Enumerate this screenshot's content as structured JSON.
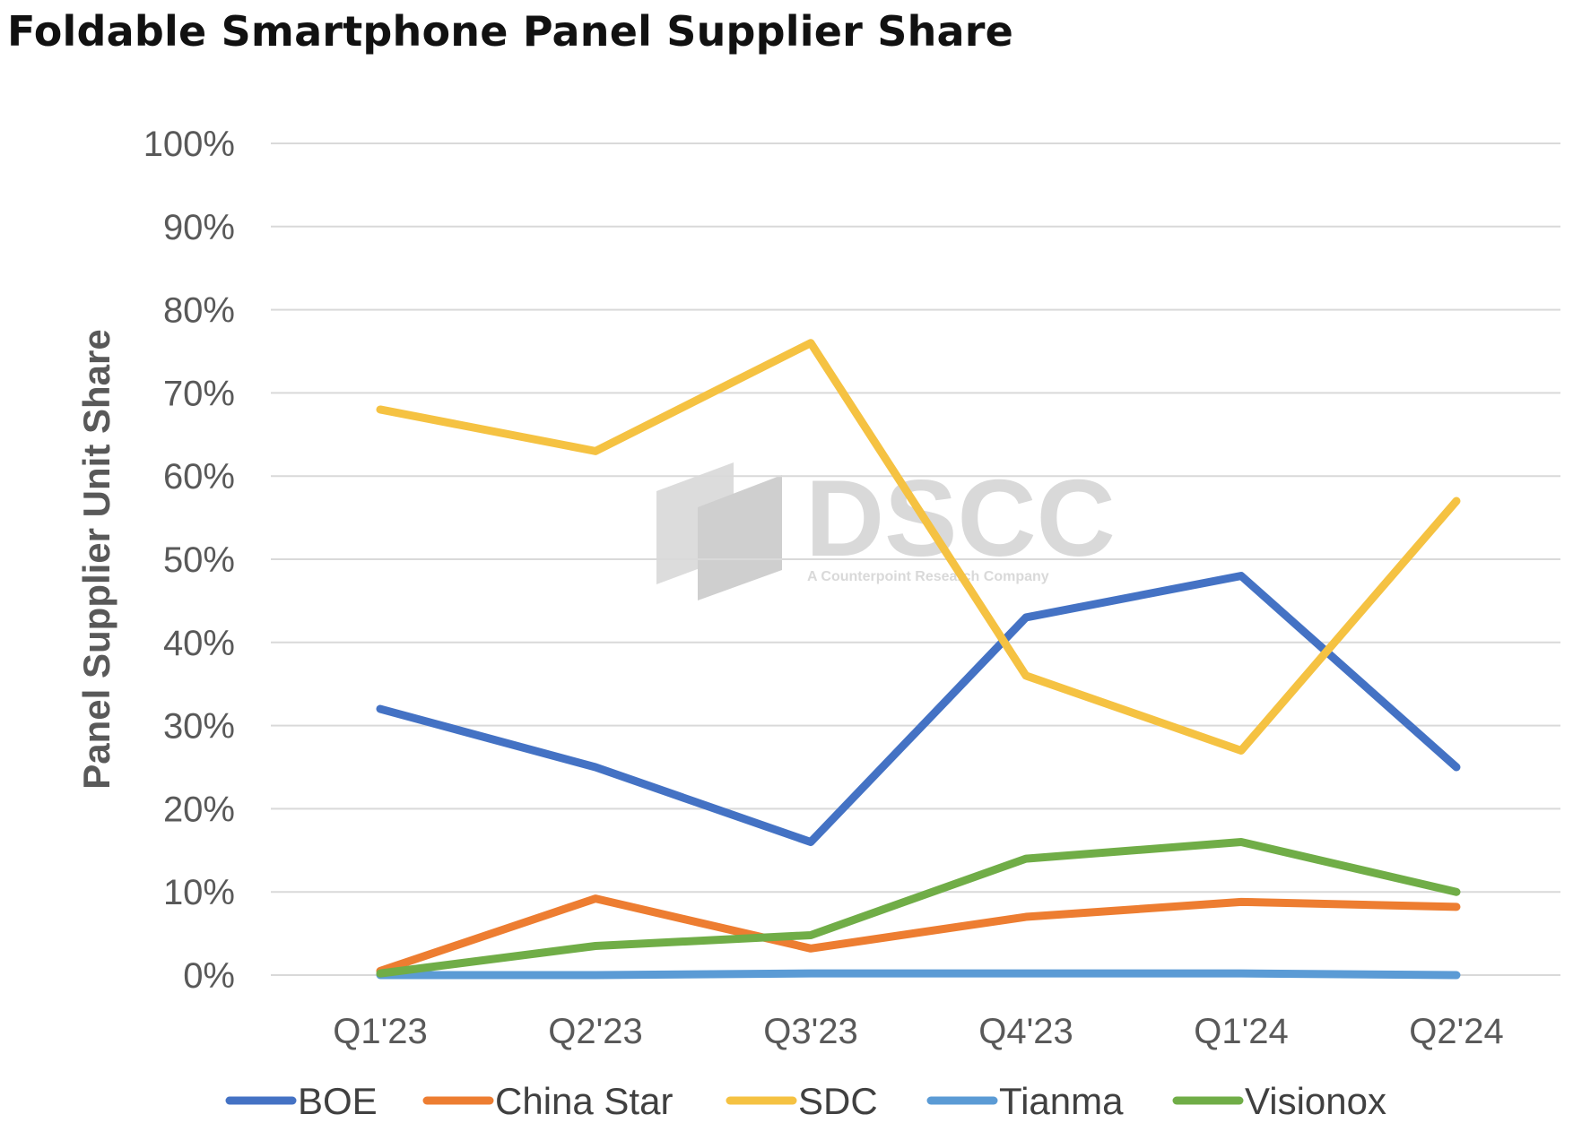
{
  "title": "Foldable Smartphone Panel Supplier Share",
  "watermark": {
    "brand": "DSCC",
    "tagline": "A Counterpoint Research Company"
  },
  "chart_data": {
    "type": "line",
    "title": "Foldable Smartphone Panel Supplier Share",
    "xlabel": "",
    "ylabel": "Panel Supplier Unit Share",
    "ylim": [
      0,
      100
    ],
    "y_unit": "%",
    "y_ticks": [
      "0%",
      "10%",
      "20%",
      "30%",
      "40%",
      "50%",
      "60%",
      "70%",
      "80%",
      "90%",
      "100%"
    ],
    "grid": "horizontal",
    "legend_position": "bottom",
    "categories": [
      "Q1'23",
      "Q2'23",
      "Q3'23",
      "Q4'23",
      "Q1'24",
      "Q2'24"
    ],
    "series": [
      {
        "name": "BOE",
        "color": "#4472c4",
        "values": [
          32,
          25,
          16,
          43,
          48,
          25
        ]
      },
      {
        "name": "China Star",
        "color": "#ed7d31",
        "values": [
          0.5,
          9.2,
          3.2,
          7,
          8.8,
          8.2
        ]
      },
      {
        "name": "SDC",
        "color": "#f5c242",
        "values": [
          68,
          63,
          76,
          36,
          27,
          57
        ]
      },
      {
        "name": "Tianma",
        "color": "#5b9bd5",
        "values": [
          0,
          0,
          0.2,
          0.2,
          0.2,
          0
        ]
      },
      {
        "name": "Visionox",
        "color": "#70ad47",
        "values": [
          0.2,
          3.5,
          4.8,
          14,
          16,
          10
        ]
      }
    ]
  }
}
